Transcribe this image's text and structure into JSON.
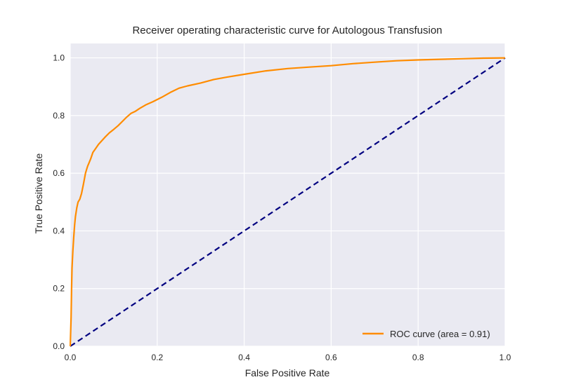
{
  "chart_data": {
    "type": "line",
    "title": "Receiver operating characteristic curve for Autologous Transfusion",
    "xlabel": "False Positive Rate",
    "ylabel": "True Positive Rate",
    "xlim": [
      0.0,
      1.0
    ],
    "ylim": [
      0.0,
      1.05
    ],
    "x_ticks": [
      "0.0",
      "0.2",
      "0.4",
      "0.6",
      "0.8",
      "1.0"
    ],
    "y_ticks": [
      "0.0",
      "0.2",
      "0.4",
      "0.6",
      "0.8",
      "1.0"
    ],
    "grid": true,
    "legend_position": "lower-right",
    "series": [
      {
        "name": "ROC curve (area = 0.91)",
        "color": "#ff8c00",
        "style": "solid",
        "x": [
          0.0,
          0.002,
          0.003,
          0.004,
          0.006,
          0.008,
          0.01,
          0.012,
          0.015,
          0.018,
          0.022,
          0.026,
          0.03,
          0.035,
          0.038,
          0.04,
          0.043,
          0.047,
          0.052,
          0.058,
          0.065,
          0.072,
          0.08,
          0.09,
          0.1,
          0.11,
          0.12,
          0.13,
          0.14,
          0.15,
          0.16,
          0.175,
          0.19,
          0.21,
          0.23,
          0.25,
          0.27,
          0.3,
          0.33,
          0.36,
          0.4,
          0.45,
          0.5,
          0.55,
          0.6,
          0.65,
          0.7,
          0.75,
          0.8,
          0.85,
          0.9,
          0.95,
          1.0
        ],
        "y": [
          0.0,
          0.1,
          0.2,
          0.27,
          0.33,
          0.38,
          0.42,
          0.45,
          0.48,
          0.5,
          0.51,
          0.53,
          0.56,
          0.6,
          0.615,
          0.625,
          0.635,
          0.65,
          0.672,
          0.685,
          0.7,
          0.712,
          0.725,
          0.74,
          0.752,
          0.765,
          0.78,
          0.795,
          0.808,
          0.815,
          0.825,
          0.838,
          0.848,
          0.863,
          0.88,
          0.895,
          0.903,
          0.913,
          0.925,
          0.933,
          0.943,
          0.955,
          0.963,
          0.968,
          0.973,
          0.98,
          0.985,
          0.99,
          0.993,
          0.995,
          0.997,
          0.999,
          1.0
        ]
      },
      {
        "name": "",
        "color": "#000080",
        "style": "dashed",
        "x": [
          0.0,
          1.0
        ],
        "y": [
          0.0,
          1.0
        ]
      }
    ]
  }
}
